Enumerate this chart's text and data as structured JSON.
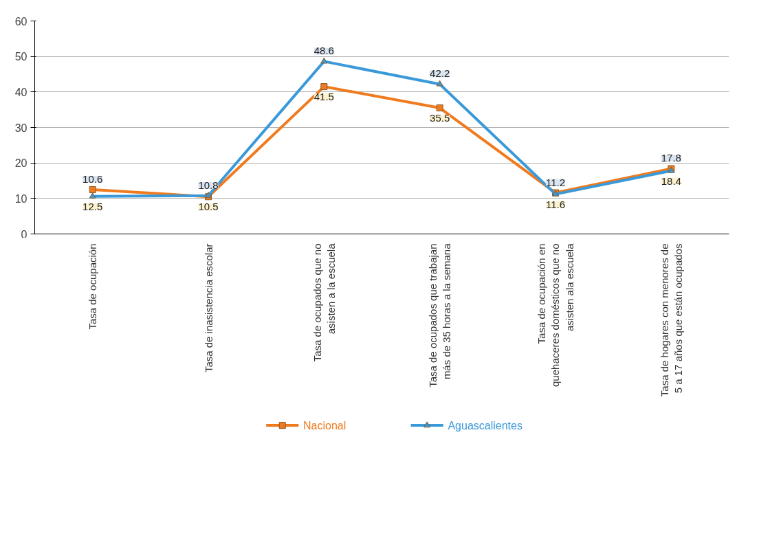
{
  "chart_data": {
    "type": "line",
    "categories": [
      "Tasa de ocupación",
      "Tasa de inasistencia escolar",
      "Tasa de ocupados que no asisten a la escuela",
      "Tasa de ocupados que trabajan más de 35 horas a la semana",
      "Tasa de ocupación en quehaceres domésticos que no asisten ala escuela",
      "Tasa de hogares con menores de 5 a 17 años que están ocupados"
    ],
    "series": [
      {
        "name": "Nacional",
        "color": "#f07a1e",
        "marker": "square",
        "values": [
          12.5,
          10.5,
          41.5,
          35.5,
          11.6,
          18.4
        ]
      },
      {
        "name": "Aguascalientes",
        "color": "#3a9ad9",
        "marker": "triangle",
        "values": [
          10.6,
          10.8,
          48.6,
          42.2,
          11.2,
          17.8
        ]
      }
    ],
    "ylim": [
      0,
      60
    ],
    "yticks": [
      0,
      10,
      20,
      30,
      40,
      50,
      60
    ],
    "grid": "y",
    "legend": "bottom",
    "data_labels": true
  }
}
